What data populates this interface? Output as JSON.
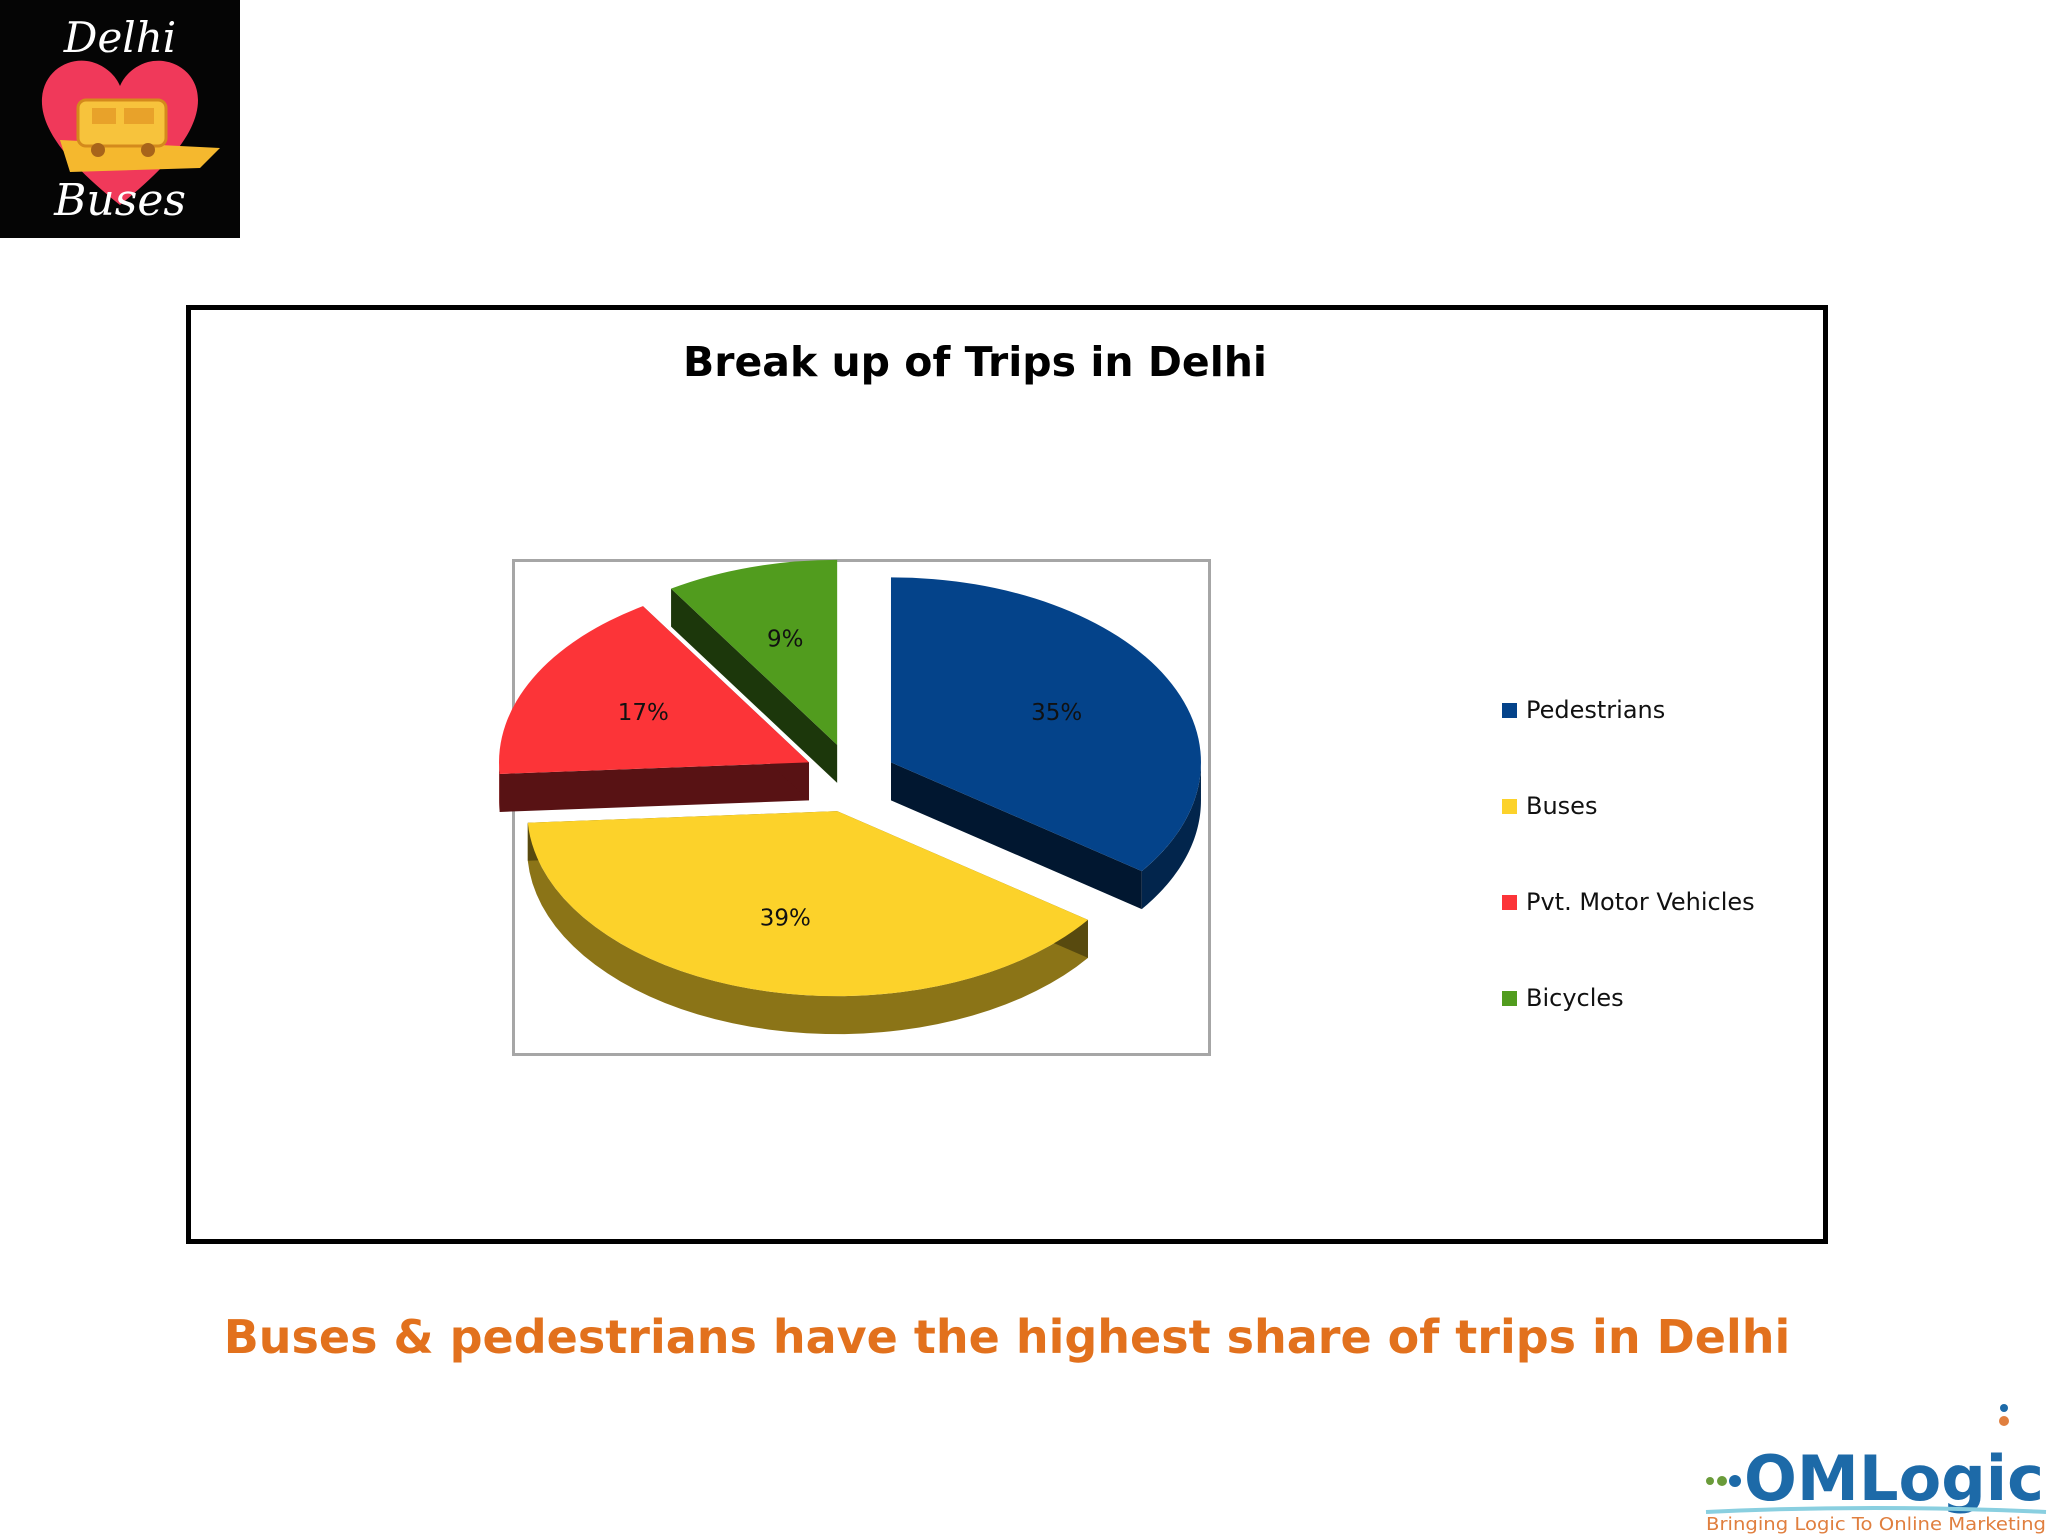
{
  "logo": {
    "line1": "Delhi",
    "line2": "Buses",
    "icon": "heart-bus-icon",
    "background": "#050505",
    "heart_color": "#f0395a"
  },
  "chart_data": {
    "type": "pie",
    "title": "Break up of Trips in Delhi",
    "style": "3d-exploded",
    "categories": [
      "Pedestrians",
      "Buses",
      "Pvt. Motor Vehicles",
      "Bicycles"
    ],
    "values": [
      35,
      39,
      17,
      9
    ],
    "labels": [
      "35%",
      "39%",
      "17%",
      "9%"
    ],
    "colors": [
      "#04438a",
      "#fcd22a",
      "#fc3438",
      "#519c1e"
    ],
    "legend_position": "right"
  },
  "caption": "Buses & pedestrians have the highest share of trips in Delhi",
  "brand_logo": {
    "name": "OMLogic",
    "tagline": "Bringing Logic To Online Marketing",
    "name_color": "#1d6aa8",
    "tagline_color": "#e07f3f"
  }
}
